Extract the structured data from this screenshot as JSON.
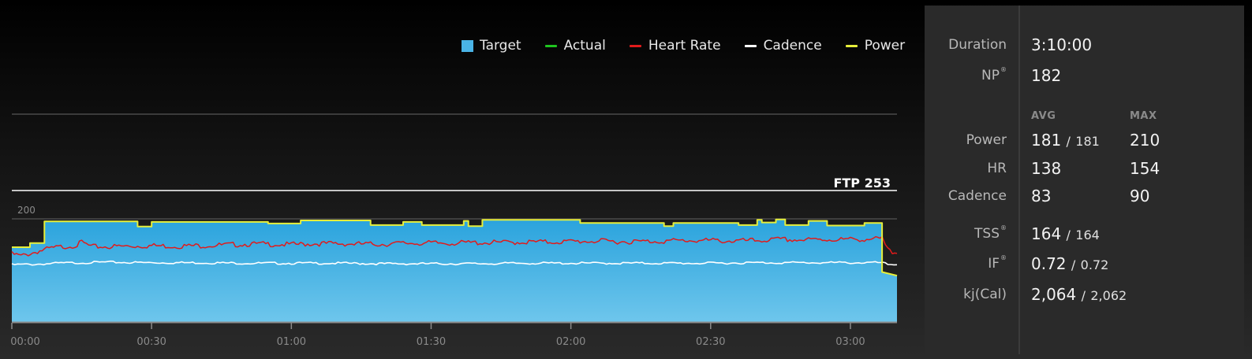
{
  "legend": {
    "items": [
      {
        "label": "Target",
        "kind": "box",
        "color": "#4ab4e6"
      },
      {
        "label": "Actual",
        "kind": "line",
        "color": "#1fc41f"
      },
      {
        "label": "Heart Rate",
        "kind": "line",
        "color": "#e11b1b"
      },
      {
        "label": "Cadence",
        "kind": "line",
        "color": "#ffffff"
      },
      {
        "label": "Power",
        "kind": "line",
        "color": "#e6ee3a"
      }
    ]
  },
  "stats": {
    "duration_label": "Duration",
    "duration_value": "3:10:00",
    "np_label": "NP",
    "np_mark": "®",
    "np_value": "182",
    "avg_header": "AVG",
    "max_header": "MAX",
    "power_label": "Power",
    "power_avg": "181",
    "power_sep": "/",
    "power_avg_sub": "181",
    "power_max": "210",
    "hr_label": "HR",
    "hr_avg": "138",
    "hr_max": "154",
    "cadence_label": "Cadence",
    "cadence_avg": "83",
    "cadence_max": "90",
    "tss_label": "TSS",
    "tss_mark": "®",
    "tss_value": "164",
    "tss_sep": "/",
    "tss_sub": "164",
    "if_label": "IF",
    "if_mark": "®",
    "if_value": "0.72",
    "if_sep": "/",
    "if_sub": "0.72",
    "kj_label": "kj(Cal)",
    "kj_value": "2,064",
    "kj_sep": "/",
    "kj_sub": "2,062"
  },
  "chart_data": {
    "type": "area",
    "x_unit": "elapsed time (h:mm)",
    "xlim_minutes": [
      0,
      190
    ],
    "x_ticks": [
      "00:00",
      "00:30",
      "01:00",
      "01:30",
      "02:00",
      "02:30",
      "03:00"
    ],
    "x_tick_minutes": [
      0,
      30,
      60,
      90,
      120,
      150,
      180
    ],
    "y_ticks": [
      200
    ],
    "y_tick_labels": [
      "200"
    ],
    "ftp": {
      "label": "FTP 253",
      "value": 253
    },
    "colors": {
      "target": "#4ab4e6",
      "heart_rate": "#e11b1b",
      "cadence": "#ffffff",
      "power": "#e6ee3a"
    },
    "series": [
      {
        "name": "Target",
        "x": [
          0,
          3.9,
          3.9,
          7,
          7,
          27,
          27,
          30,
          30,
          55,
          55,
          62,
          62,
          77,
          77,
          84,
          84,
          88,
          88,
          97,
          97,
          98,
          98,
          101,
          101,
          122,
          122,
          140,
          140,
          142,
          142,
          156,
          156,
          160,
          160,
          161,
          161,
          164,
          164,
          166,
          166,
          171,
          171,
          175,
          175,
          183,
          183,
          186.8,
          186.8,
          190
        ],
        "values": [
          145,
          145,
          153,
          153,
          195,
          195,
          185,
          185,
          194,
          194,
          191,
          191,
          197,
          197,
          188,
          188,
          194,
          194,
          188,
          188,
          196,
          196,
          186,
          186,
          198,
          198,
          192,
          192,
          186,
          186,
          192,
          192,
          188,
          188,
          198,
          198,
          193,
          193,
          199,
          199,
          188,
          188,
          196,
          196,
          187,
          187,
          192,
          192,
          97,
          90
        ]
      },
      {
        "name": "Power",
        "x": [
          0,
          3.9,
          3.9,
          7,
          7,
          27,
          27,
          30,
          30,
          55,
          55,
          62,
          62,
          77,
          77,
          84,
          84,
          88,
          88,
          97,
          97,
          98,
          98,
          101,
          101,
          122,
          122,
          140,
          140,
          142,
          142,
          156,
          156,
          160,
          160,
          161,
          161,
          164,
          164,
          166,
          166,
          171,
          171,
          175,
          175,
          183,
          183,
          186.8,
          186.8,
          190
        ],
        "values": [
          145,
          145,
          153,
          153,
          195,
          195,
          185,
          185,
          194,
          194,
          191,
          191,
          197,
          197,
          188,
          188,
          194,
          194,
          188,
          188,
          196,
          196,
          186,
          186,
          198,
          198,
          192,
          192,
          186,
          186,
          192,
          192,
          188,
          188,
          198,
          198,
          193,
          193,
          199,
          199,
          188,
          188,
          196,
          196,
          187,
          187,
          192,
          192,
          97,
          90
        ]
      },
      {
        "name": "Heart Rate",
        "x": [
          0,
          2,
          4,
          6,
          8,
          10,
          12,
          14,
          15,
          17,
          20,
          25,
          30,
          35,
          40,
          45,
          50,
          55,
          60,
          65,
          70,
          75,
          80,
          85,
          90,
          95,
          100,
          105,
          110,
          115,
          120,
          125,
          130,
          135,
          140,
          145,
          150,
          155,
          160,
          165,
          170,
          175,
          180,
          185,
          186.8,
          187.5,
          188.5,
          190
        ],
        "values": [
          132,
          128,
          133,
          138,
          142,
          145,
          147,
          149,
          155,
          146,
          146,
          147,
          148,
          147,
          148,
          149,
          151,
          151,
          150,
          152,
          152,
          151,
          151,
          153,
          153,
          153,
          154,
          154,
          155,
          155,
          156,
          157,
          156,
          156,
          157,
          158,
          158,
          157,
          158,
          160,
          159,
          160,
          160,
          161,
          161,
          148,
          136,
          133
        ]
      },
      {
        "name": "Cadence",
        "x": [
          0,
          5,
          10,
          20,
          30,
          40,
          50,
          60,
          70,
          80,
          90,
          100,
          110,
          120,
          130,
          140,
          150,
          160,
          170,
          180,
          186.5,
          188,
          190
        ],
        "values": [
          111,
          112,
          114,
          116,
          115,
          115,
          114,
          114,
          114,
          113,
          113,
          113,
          114,
          114,
          114,
          114,
          114,
          115,
          115,
          115,
          115,
          112,
          111
        ]
      }
    ]
  }
}
